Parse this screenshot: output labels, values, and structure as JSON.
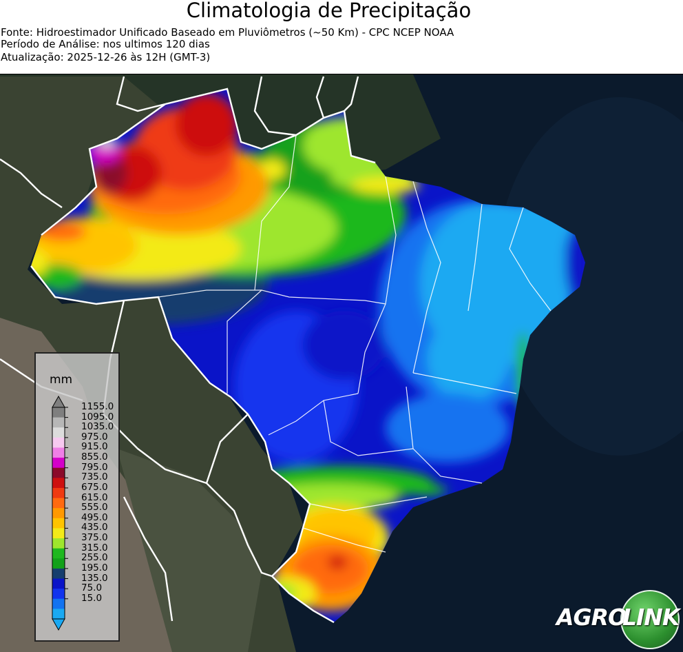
{
  "header": {
    "title": "Climatologia de Precipitação",
    "source_line": "Fonte: Hidroestimador Unificado Baseado em Pluviômetros (~50 Km) - CPC NCEP NOAA",
    "period_line": "Período de Análise: nos ultimos 120 dias",
    "updated_line": "Atualização: 2025-12-26 às 12H (GMT-3)"
  },
  "legend": {
    "unit": "mm",
    "ticks": [
      "1155.0",
      "1095.0",
      "1035.0",
      "975.0",
      "915.0",
      "855.0",
      "795.0",
      "735.0",
      "675.0",
      "615.0",
      "555.0",
      "495.0",
      "435.0",
      "375.0",
      "315.0",
      "255.0",
      "195.0",
      "135.0",
      "75.0",
      "15.0"
    ],
    "colors_top_to_bottom": [
      "#7f7f7f",
      "#b7b7b7",
      "#dcdcdc",
      "#f7c9f0",
      "#ef7fe6",
      "#d500c9",
      "#8b0a2a",
      "#cd1010",
      "#ef3a12",
      "#ff6a10",
      "#ff9900",
      "#ffc400",
      "#f3ea18",
      "#9ee62d",
      "#1fb81f",
      "#12a11a",
      "#163e6e",
      "#0a14c8",
      "#1234ee",
      "#1273f0",
      "#1aa9f2"
    ],
    "arrow_top_color": "#7f7f7f",
    "arrow_bottom_color": "#1aa9f2"
  },
  "logo": {
    "part1": "AGRO",
    "part2": "LINK",
    "circle_color": "#2e9b31"
  },
  "map": {
    "ocean_color": "#0b1a2c",
    "land_color": "#2f3a2a",
    "border_color": "#ffffff"
  }
}
